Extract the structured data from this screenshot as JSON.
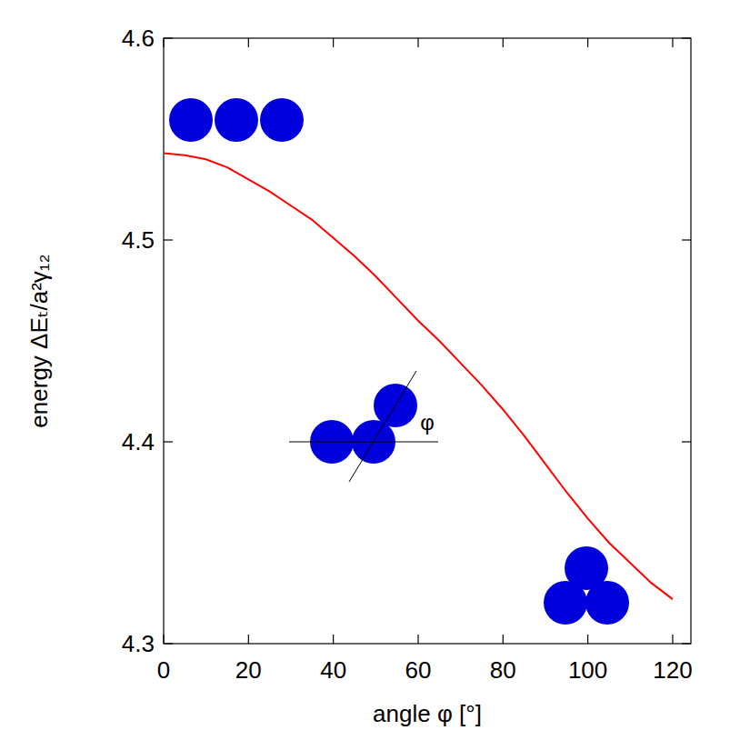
{
  "chart_data": {
    "type": "line",
    "x_label": "angle φ [°]",
    "y_label": "energy ΔEₜ/a²γ₁₂",
    "annotation": "φ",
    "x": [
      0,
      5,
      10,
      15,
      20,
      25,
      30,
      35,
      40,
      45,
      50,
      55,
      60,
      65,
      70,
      75,
      80,
      85,
      90,
      95,
      100,
      105,
      110,
      115,
      120
    ],
    "series": [
      {
        "name": "energy",
        "color": "#ff0000",
        "values": [
          4.543,
          4.542,
          4.54,
          4.536,
          4.53,
          4.524,
          4.517,
          4.51,
          4.501,
          4.492,
          4.482,
          4.471,
          4.46,
          4.45,
          4.439,
          4.428,
          4.416,
          4.403,
          4.389,
          4.375,
          4.362,
          4.35,
          4.34,
          4.33,
          4.322
        ]
      }
    ],
    "xlim": [
      0,
      124.3
    ],
    "ylim": [
      4.3,
      4.6
    ],
    "xticks": [
      0,
      20,
      40,
      60,
      80,
      100,
      120
    ],
    "yticks": [
      4.3,
      4.4,
      4.5,
      4.6
    ],
    "grid": false
  }
}
